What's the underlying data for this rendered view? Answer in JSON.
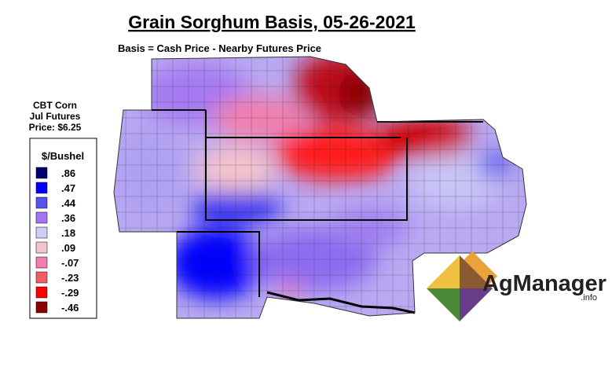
{
  "header": {
    "title": "Grain Sorghum Basis, 05-26-2021",
    "subtitle": "Basis = Cash Price - Nearby Futures Price"
  },
  "futures_note": {
    "lines": [
      "CBT Corn",
      "Jul Futures",
      "Price: $6.25"
    ]
  },
  "legend": {
    "title": "$/Bushel",
    "items": [
      {
        "label": ".86",
        "color": "#000070"
      },
      {
        "label": ".47",
        "color": "#0000ff"
      },
      {
        "label": ".44",
        "color": "#5555ee"
      },
      {
        "label": ".36",
        "color": "#a673f2"
      },
      {
        "label": ".18",
        "color": "#cccdf7"
      },
      {
        "label": ".09",
        "color": "#f4c3cb"
      },
      {
        "label": "-.07",
        "color": "#f07fb0"
      },
      {
        "label": "-.23",
        "color": "#f25e63"
      },
      {
        "label": "-.29",
        "color": "#ff0000"
      },
      {
        "label": "-.46",
        "color": "#8b0000"
      }
    ]
  },
  "logo": {
    "name": "AgManager",
    "suffix": ".info"
  }
}
